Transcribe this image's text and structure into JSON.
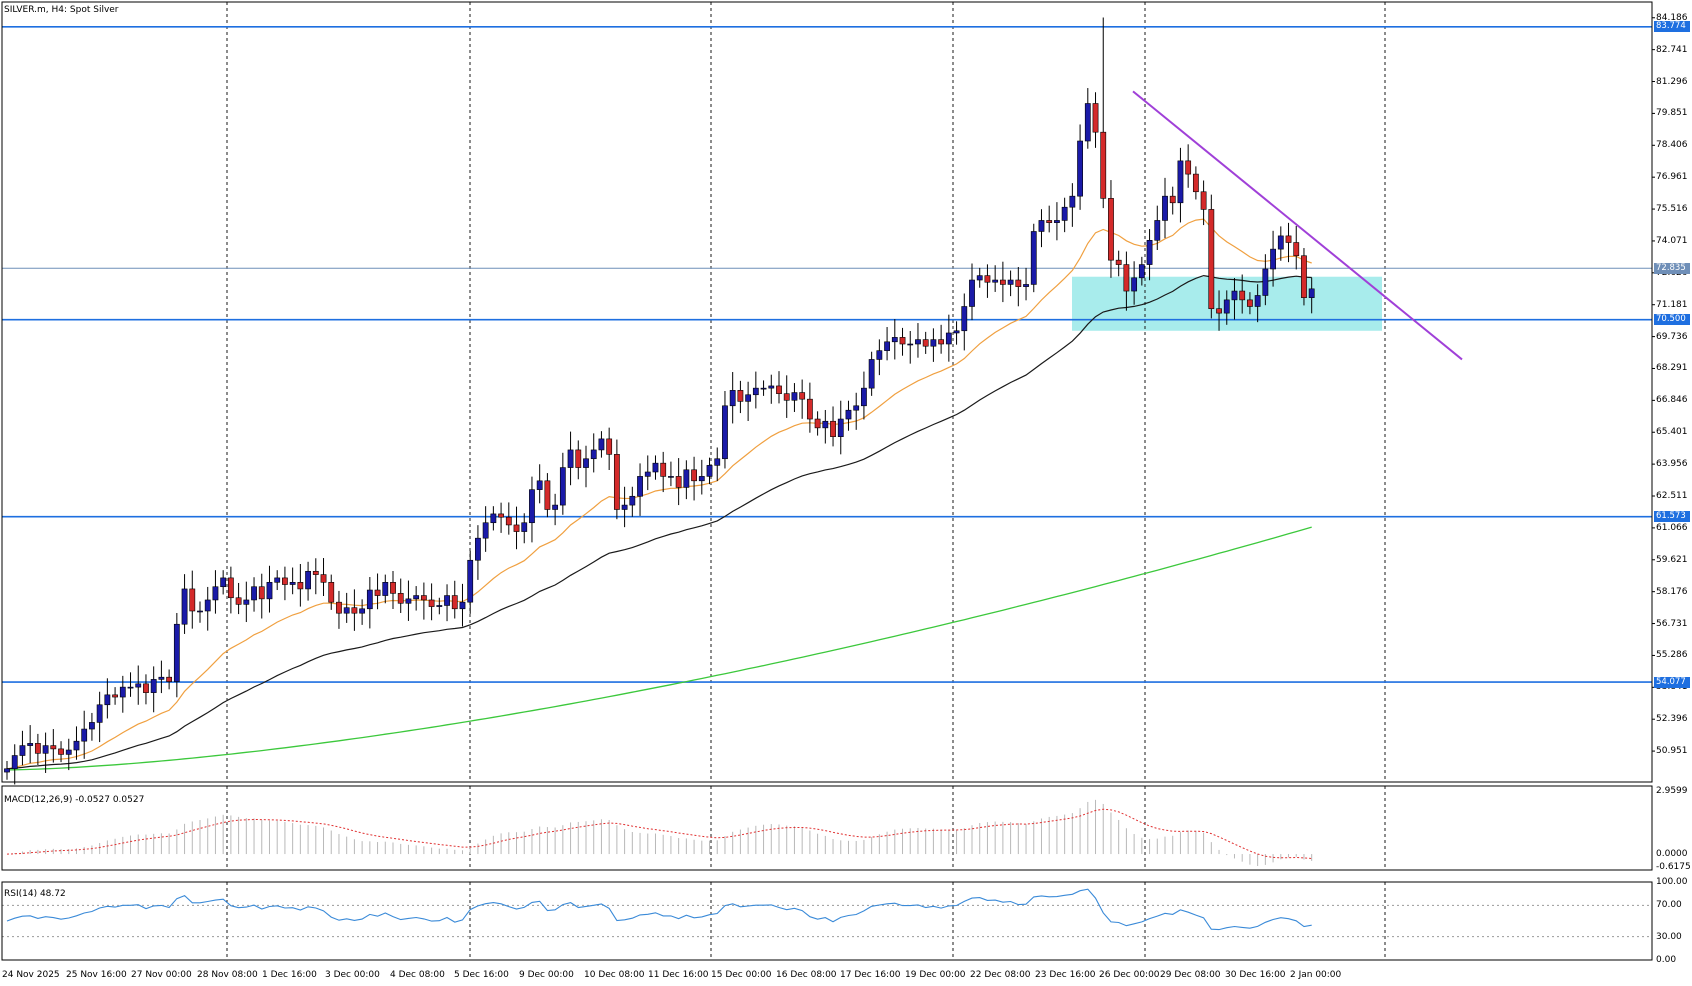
{
  "symbol_label": "SILVER.m, H4:  Spot Silver",
  "price_axis": {
    "ticks": [
      "84.186",
      "82.741",
      "81.296",
      "79.851",
      "78.406",
      "76.961",
      "75.516",
      "74.071",
      "72.626",
      "71.181",
      "69.736",
      "68.291",
      "66.846",
      "65.401",
      "63.956",
      "62.511",
      "61.066",
      "59.621",
      "58.176",
      "56.731",
      "55.286",
      "53.841",
      "52.396",
      "50.951"
    ],
    "range": [
      49.55,
      84.9
    ]
  },
  "price_tags": [
    {
      "text": "83.774",
      "value": 83.774,
      "color": "#1e6fe0"
    },
    {
      "text": "72.835",
      "value": 72.835,
      "color": "#6f8fb8"
    },
    {
      "text": "70.500",
      "value": 70.5,
      "color": "#1e6fe0"
    },
    {
      "text": "61.573",
      "value": 61.573,
      "color": "#1e6fe0"
    },
    {
      "text": "54.077",
      "value": 54.077,
      "color": "#1e6fe0"
    }
  ],
  "time_axis": [
    "24 Nov 2025",
    "25 Nov 16:00",
    "27 Nov 00:00",
    "28 Nov 08:00",
    "1 Dec 16:00",
    "3 Dec 00:00",
    "4 Dec 08:00",
    "5 Dec 16:00",
    "9 Dec 00:00",
    "10 Dec 08:00",
    "11 Dec 16:00",
    "15 Dec 00:00",
    "16 Dec 08:00",
    "17 Dec 16:00",
    "19 Dec 00:00",
    "22 Dec 08:00",
    "23 Dec 16:00",
    "26 Dec 00:00",
    "29 Dec 08:00",
    "30 Dec 16:00",
    "2 Jan 00:00"
  ],
  "macd": {
    "label": "MACD(12,26,9) -0.0527 0.0527",
    "ticks": [
      "2.9599",
      "0.0000",
      "-0.6175"
    ],
    "range": [
      -0.75,
      3.2
    ]
  },
  "rsi": {
    "label": "RSI(14) 48.72",
    "ticks": [
      "100.00",
      "70.00",
      "30.00",
      "0.00"
    ],
    "levels": [
      70,
      30
    ]
  },
  "colors": {
    "bull": "#1a1aa8",
    "bear": "#d42a2a",
    "grid": "#1a1a1a",
    "hline": "#1e6fe0",
    "ema_fast": "#f0a040",
    "ema_mid": "#1a1a1a",
    "ema_slow": "#3cc83c",
    "trendline": "#a040d8",
    "zone": "#a8ecec",
    "macd_signal": "#e03030",
    "macd_hist": "#b8b8b8",
    "rsi_line": "#3a8ad8"
  },
  "chart_data": {
    "type": "candlestick",
    "timeframe": "H4",
    "closes": [
      50.15,
      50.75,
      51.2,
      51.3,
      50.85,
      51.2,
      51.05,
      50.8,
      51.0,
      51.4,
      51.95,
      52.25,
      53.05,
      53.5,
      53.4,
      53.85,
      53.85,
      54.0,
      53.6,
      54.2,
      54.3,
      54.1,
      56.7,
      58.3,
      57.3,
      57.3,
      57.8,
      58.4,
      58.8,
      57.9,
      57.6,
      57.8,
      58.4,
      57.85,
      58.6,
      58.8,
      58.5,
      58.6,
      58.3,
      59.1,
      58.95,
      58.6,
      57.7,
      57.2,
      57.45,
      57.2,
      57.4,
      58.25,
      58.0,
      58.6,
      58.1,
      57.65,
      57.85,
      58.0,
      57.8,
      57.5,
      57.55,
      58.0,
      57.4,
      57.7,
      59.6,
      60.6,
      61.3,
      61.7,
      61.55,
      61.2,
      60.9,
      61.3,
      62.8,
      63.2,
      61.9,
      62.1,
      63.8,
      64.6,
      63.8,
      64.2,
      64.6,
      65.1,
      64.4,
      61.9,
      62.1,
      62.5,
      63.4,
      63.6,
      64.0,
      63.4,
      63.4,
      62.9,
      63.7,
      63.2,
      63.4,
      63.9,
      64.2,
      66.6,
      67.3,
      66.8,
      67.1,
      67.4,
      67.4,
      67.5,
      67.15,
      66.85,
      67.2,
      66.9,
      66.0,
      65.6,
      65.9,
      65.2,
      66.0,
      66.4,
      66.6,
      67.4,
      68.7,
      69.1,
      69.5,
      69.7,
      69.4,
      69.4,
      69.6,
      69.3,
      69.6,
      69.4,
      69.9,
      70.0,
      71.1,
      72.3,
      72.5,
      72.2,
      72.3,
      72.1,
      72.3,
      72.0,
      72.1,
      74.5,
      75.0,
      74.9,
      75.0,
      75.6,
      76.1,
      78.6,
      80.3,
      79.0,
      76.0,
      73.2,
      73.0,
      71.8,
      72.4,
      73.0,
      74.1,
      75.0,
      76.1,
      75.8,
      77.7,
      77.1,
      76.3,
      75.5,
      71.0,
      70.8,
      71.4,
      71.8,
      71.4,
      71.1,
      71.6,
      72.8,
      73.7,
      74.3,
      74.0,
      73.4,
      71.5,
      71.9
    ]
  }
}
